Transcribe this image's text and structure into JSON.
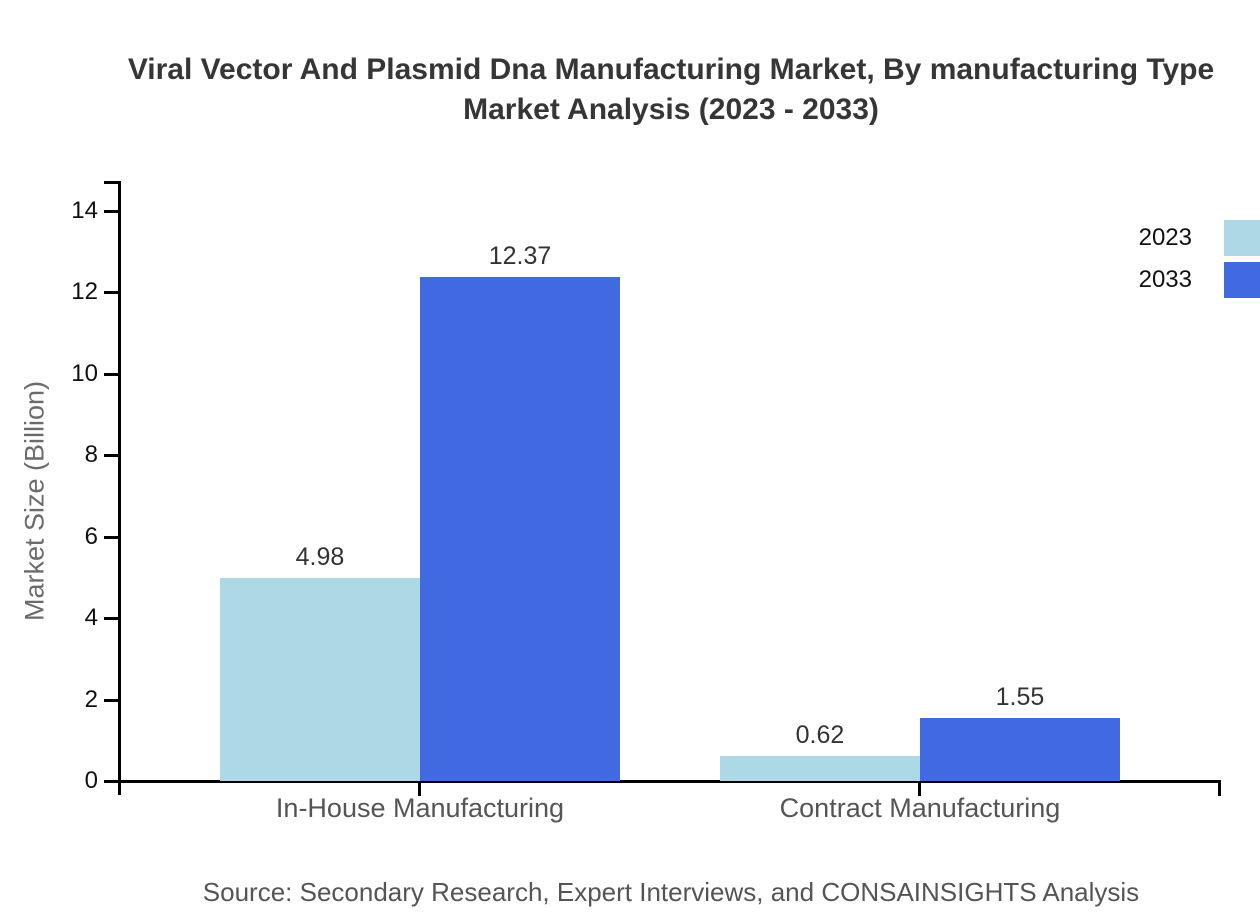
{
  "title": {
    "line1": "Viral Vector And Plasmid Dna Manufacturing Market, By manufacturing Type",
    "line2": "Market Analysis (2023 - 2033)"
  },
  "source": "Source: Secondary Research, Expert Interviews, and CONSAINSIGHTS Analysis",
  "chart_data": {
    "type": "bar",
    "title": "Viral Vector And Plasmid Dna Manufacturing Market, By manufacturing Type Market Analysis (2023 - 2033)",
    "categories": [
      "In-House Manufacturing",
      "Contract Manufacturing"
    ],
    "series": [
      {
        "name": "2023",
        "color": "#ADD8E6",
        "values": [
          4.98,
          0.62
        ]
      },
      {
        "name": "2033",
        "color": "#4169E1",
        "values": [
          12.37,
          1.55
        ]
      }
    ],
    "xlabel": "",
    "ylabel": "Market Size (Billion)",
    "ylim": [
      0,
      15
    ],
    "yticks": [
      0,
      2,
      4,
      6,
      8,
      10,
      12,
      14
    ],
    "grid": false,
    "legend_position": "top-right",
    "value_labels": true,
    "colors": {
      "axis": "#000000",
      "title_text": "#363636",
      "tick_text": "#111111",
      "category_text": "#555555",
      "value_text": "#333333",
      "axis_title_text": "#6b6b6b",
      "source_text": "#555555"
    }
  }
}
